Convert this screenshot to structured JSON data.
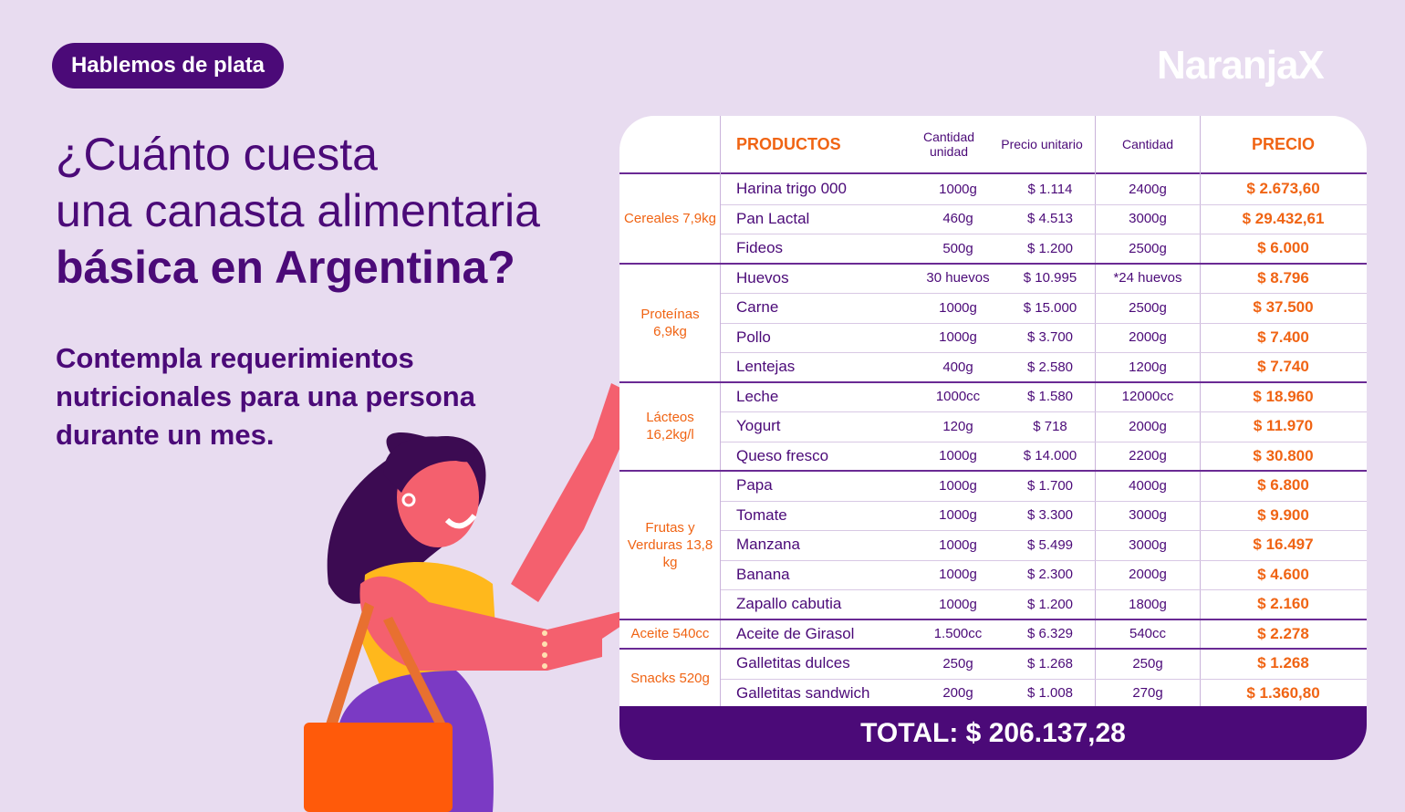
{
  "badge": "Hablemos de plata",
  "logo": "NaranjaX",
  "headline": {
    "line1": "¿Cuánto cuesta",
    "line2": "una canasta alimentaria",
    "line3_bold": "básica",
    "line3_rest": " en Argentina?"
  },
  "subtitle": "Contempla requerimientos nutricionales para una persona durante un mes.",
  "table": {
    "headers": {
      "productos": "PRODUCTOS",
      "cantidad_unidad": "Cantidad unidad",
      "precio_unitario": "Precio unitario",
      "cantidad": "Cantidad",
      "precio": "PRECIO"
    },
    "groups": [
      {
        "label": "Cereales 7,9kg",
        "rows": [
          {
            "name": "Harina trigo 000",
            "qty": "1000g",
            "unit": "$ 1.114",
            "cant": "2400g",
            "price": "$ 2.673,60"
          },
          {
            "name": "Pan Lactal",
            "qty": "460g",
            "unit": "$ 4.513",
            "cant": "3000g",
            "price": "$ 29.432,61"
          },
          {
            "name": "Fideos",
            "qty": "500g",
            "unit": "$ 1.200",
            "cant": "2500g",
            "price": "$ 6.000"
          }
        ]
      },
      {
        "label": "Proteínas 6,9kg",
        "rows": [
          {
            "name": "Huevos",
            "qty": "30 huevos",
            "unit": "$ 10.995",
            "cant": "*24 huevos",
            "price": "$ 8.796"
          },
          {
            "name": "Carne",
            "qty": "1000g",
            "unit": "$ 15.000",
            "cant": "2500g",
            "price": "$ 37.500"
          },
          {
            "name": "Pollo",
            "qty": "1000g",
            "unit": "$ 3.700",
            "cant": "2000g",
            "price": "$ 7.400"
          },
          {
            "name": "Lentejas",
            "qty": "400g",
            "unit": "$ 2.580",
            "cant": "1200g",
            "price": "$ 7.740"
          }
        ]
      },
      {
        "label": "Lácteos 16,2kg/l",
        "rows": [
          {
            "name": "Leche",
            "qty": "1000cc",
            "unit": "$ 1.580",
            "cant": "12000cc",
            "price": "$ 18.960"
          },
          {
            "name": "Yogurt",
            "qty": "120g",
            "unit": "$ 718",
            "cant": "2000g",
            "price": "$ 11.970"
          },
          {
            "name": "Queso fresco",
            "qty": "1000g",
            "unit": "$ 14.000",
            "cant": "2200g",
            "price": "$ 30.800"
          }
        ]
      },
      {
        "label": "Frutas y Verduras 13,8 kg",
        "rows": [
          {
            "name": "Papa",
            "qty": "1000g",
            "unit": "$ 1.700",
            "cant": "4000g",
            "price": "$ 6.800"
          },
          {
            "name": "Tomate",
            "qty": "1000g",
            "unit": "$ 3.300",
            "cant": "3000g",
            "price": "$ 9.900"
          },
          {
            "name": "Manzana",
            "qty": "1000g",
            "unit": "$ 5.499",
            "cant": "3000g",
            "price": "$ 16.497"
          },
          {
            "name": "Banana",
            "qty": "1000g",
            "unit": "$ 2.300",
            "cant": "2000g",
            "price": "$ 4.600"
          },
          {
            "name": "Zapallo cabutia",
            "qty": "1000g",
            "unit": "$ 1.200",
            "cant": "1800g",
            "price": "$ 2.160"
          }
        ]
      },
      {
        "label": "Aceite 540cc",
        "rows": [
          {
            "name": "Aceite de Girasol",
            "qty": "1.500cc",
            "unit": "$ 6.329",
            "cant": "540cc",
            "price": "$ 2.278"
          }
        ]
      },
      {
        "label": "Snacks 520g",
        "rows": [
          {
            "name": "Galletitas dulces",
            "qty": "250g",
            "unit": "$ 1.268",
            "cant": "250g",
            "price": "$ 1.268"
          },
          {
            "name": "Galletitas sandwich",
            "qty": "200g",
            "unit": "$ 1.008",
            "cant": "270g",
            "price": "$ 1.360,80"
          }
        ]
      }
    ],
    "total": "TOTAL: $  206.137,28"
  }
}
